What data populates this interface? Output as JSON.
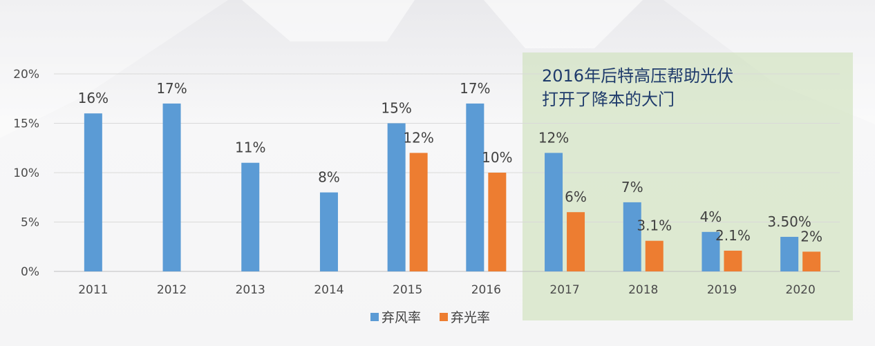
{
  "chart_data": {
    "type": "bar",
    "categories": [
      "2011",
      "2012",
      "2013",
      "2014",
      "2015",
      "2016",
      "2017",
      "2018",
      "2019",
      "2020"
    ],
    "series": [
      {
        "name": "弃风率",
        "color": "#5b9bd5",
        "values": [
          16,
          17,
          11,
          8,
          15,
          17,
          12,
          7,
          4,
          3.5
        ],
        "labels": [
          "16%",
          "17%",
          "11%",
          "8%",
          "15%",
          "17%",
          "12%",
          "7%",
          "4%",
          "3.50%"
        ]
      },
      {
        "name": "弃光率",
        "color": "#ed7d31",
        "values": [
          null,
          null,
          null,
          null,
          12,
          10,
          6,
          3.1,
          2.1,
          2
        ],
        "labels": [
          "",
          "",
          "",
          "",
          "12%",
          "10%",
          "6%",
          "3.1%",
          "2.1%",
          "2%"
        ]
      }
    ],
    "yticks": [
      0,
      5,
      10,
      15,
      20
    ],
    "ytick_labels": [
      "0%",
      "5%",
      "10%",
      "15%",
      "20%"
    ],
    "ylim": [
      0,
      20
    ],
    "grid": true,
    "legend": {
      "position": "bottom"
    },
    "annotation": {
      "lines": [
        "2016年后特高压帮助光伏",
        "打开了降本的大门"
      ],
      "highlight_from": "2017",
      "highlight_to": "2020"
    }
  }
}
